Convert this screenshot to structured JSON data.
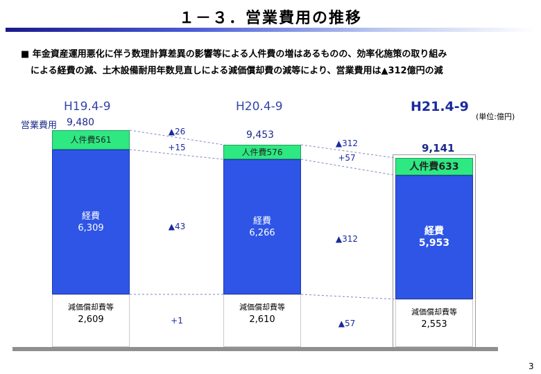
{
  "title": "１－３．営業費用の推移",
  "summary": {
    "line1": "■ 年金資産運用悪化に伴う数理計算差異の影響等による人件費の増はあるものの、効率化施策の取り組み",
    "line2": "による経費の減、土木設備耐用年数見直しによる減価償却費の減等により、営業費用は▲312億円の減"
  },
  "unit": "(単位:億円)",
  "opex_label": "営業費用",
  "page_number": "3",
  "colors": {
    "labor": "#2ee882",
    "expense": "#2e55e6",
    "depreciation": "#ffffff",
    "accent": "#1a2a9c"
  },
  "chart_data": {
    "type": "bar",
    "stacked": true,
    "categories": [
      "H19.4-9",
      "H20.4-9",
      "H21.4-9"
    ],
    "totals": [
      "9,480",
      "9,453",
      "9,141"
    ],
    "series": [
      {
        "name": "減価償却費等",
        "values": [
          2609,
          2610,
          2553
        ],
        "labels": [
          "2,609",
          "2,610",
          "2,553"
        ]
      },
      {
        "name": "経費",
        "values": [
          6309,
          6266,
          5953
        ],
        "labels": [
          "6,309",
          "6,266",
          "5,953"
        ]
      },
      {
        "name": "人件費",
        "values": [
          561,
          576,
          633
        ],
        "labels": [
          "人件費561",
          "人件費576",
          "人件費633"
        ]
      }
    ],
    "changes": [
      {
        "total": "▲26",
        "labor": "+15",
        "expense": "▲43",
        "depreciation": "+1"
      },
      {
        "total": "▲312",
        "labor": "+57",
        "expense": "▲312",
        "depreciation": "▲57"
      }
    ]
  }
}
